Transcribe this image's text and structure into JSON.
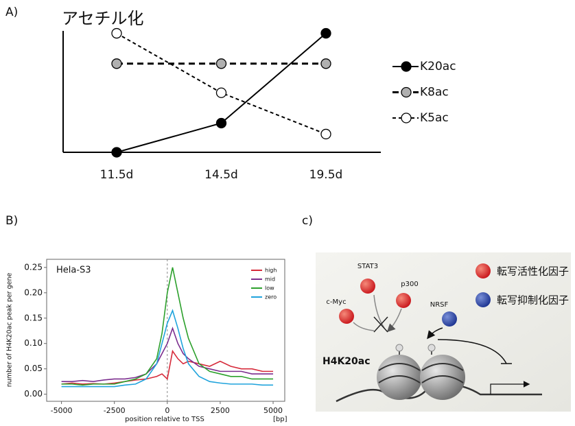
{
  "chart_data": [
    {
      "type": "line",
      "label": "A)",
      "title": "アセチル化",
      "categories": [
        "11.5d",
        "14.5d",
        "19.5d"
      ],
      "ylim": [
        0,
        1
      ],
      "legend": "right",
      "series": [
        {
          "name": "K20ac",
          "color": "#000000",
          "marker_color": "#000000",
          "dash": "solid",
          "values": [
            0,
            0.24,
            0.98
          ]
        },
        {
          "name": "K8ac",
          "color": "#000000",
          "marker_color": "#b0b0b0",
          "dash": "long",
          "values": [
            0.73,
            0.73,
            0.73
          ]
        },
        {
          "name": "K5ac",
          "color": "#000000",
          "marker_color": "#ffffff",
          "dash": "short",
          "values": [
            0.98,
            0.49,
            0.15
          ]
        }
      ]
    },
    {
      "type": "line",
      "label": "B)",
      "annotation": "Hela-S3",
      "x_label": "position relative to TSS",
      "x_unit": "[bp]",
      "y_label": "number of H4K20ac peak per gene",
      "x": [
        -5000,
        -4500,
        -4000,
        -3500,
        -3000,
        -2500,
        -2000,
        -1500,
        -1000,
        -500,
        -250,
        0,
        250,
        500,
        750,
        1000,
        1500,
        2000,
        2500,
        3000,
        3500,
        4000,
        4500,
        5000
      ],
      "xlim": [
        -5700,
        5550
      ],
      "ylim": [
        -0.014,
        0.266
      ],
      "xticks": [
        -5000,
        -2500,
        0,
        2500,
        5000
      ],
      "yticks": [
        {
          "value": 0,
          "label": "0.00"
        },
        0.05,
        {
          "value": 0.1,
          "label": "0.10"
        },
        0.15,
        {
          "value": 0.2,
          "label": "0.20"
        },
        0.25
      ],
      "vline": 0,
      "legend": "upper right",
      "series": [
        {
          "name": "high",
          "color": "#d62a3a",
          "values": [
            0.02,
            0.022,
            0.02,
            0.021,
            0.02,
            0.022,
            0.025,
            0.028,
            0.03,
            0.035,
            0.04,
            0.03,
            0.085,
            0.07,
            0.06,
            0.065,
            0.06,
            0.055,
            0.065,
            0.055,
            0.05,
            0.05,
            0.045,
            0.045
          ]
        },
        {
          "name": "mid",
          "color": "#7b2d8e",
          "values": [
            0.025,
            0.025,
            0.027,
            0.025,
            0.028,
            0.03,
            0.03,
            0.033,
            0.04,
            0.06,
            0.08,
            0.1,
            0.13,
            0.1,
            0.08,
            0.07,
            0.055,
            0.05,
            0.045,
            0.045,
            0.045,
            0.04,
            0.04,
            0.04
          ]
        },
        {
          "name": "low",
          "color": "#2ca02c",
          "values": [
            0.02,
            0.02,
            0.018,
            0.02,
            0.02,
            0.02,
            0.025,
            0.03,
            0.04,
            0.07,
            0.12,
            0.2,
            0.25,
            0.2,
            0.15,
            0.11,
            0.06,
            0.045,
            0.04,
            0.035,
            0.035,
            0.03,
            0.03,
            0.03
          ]
        },
        {
          "name": "zero",
          "color": "#1fa3dc",
          "values": [
            0.015,
            0.015,
            0.015,
            0.015,
            0.015,
            0.015,
            0.018,
            0.02,
            0.03,
            0.06,
            0.1,
            0.14,
            0.165,
            0.13,
            0.09,
            0.06,
            0.035,
            0.025,
            0.022,
            0.02,
            0.02,
            0.02,
            0.018,
            0.018
          ]
        }
      ]
    }
  ],
  "diagram": {
    "label": "c)",
    "mark": "H4K20ac",
    "factors": [
      {
        "label": "STAT3"
      },
      {
        "label": "p300"
      },
      {
        "label": "c-Myc"
      },
      {
        "label": "NRSF"
      }
    ],
    "legend": [
      {
        "label": "転写活性化因子"
      },
      {
        "label": "転写抑制化因子"
      }
    ]
  }
}
